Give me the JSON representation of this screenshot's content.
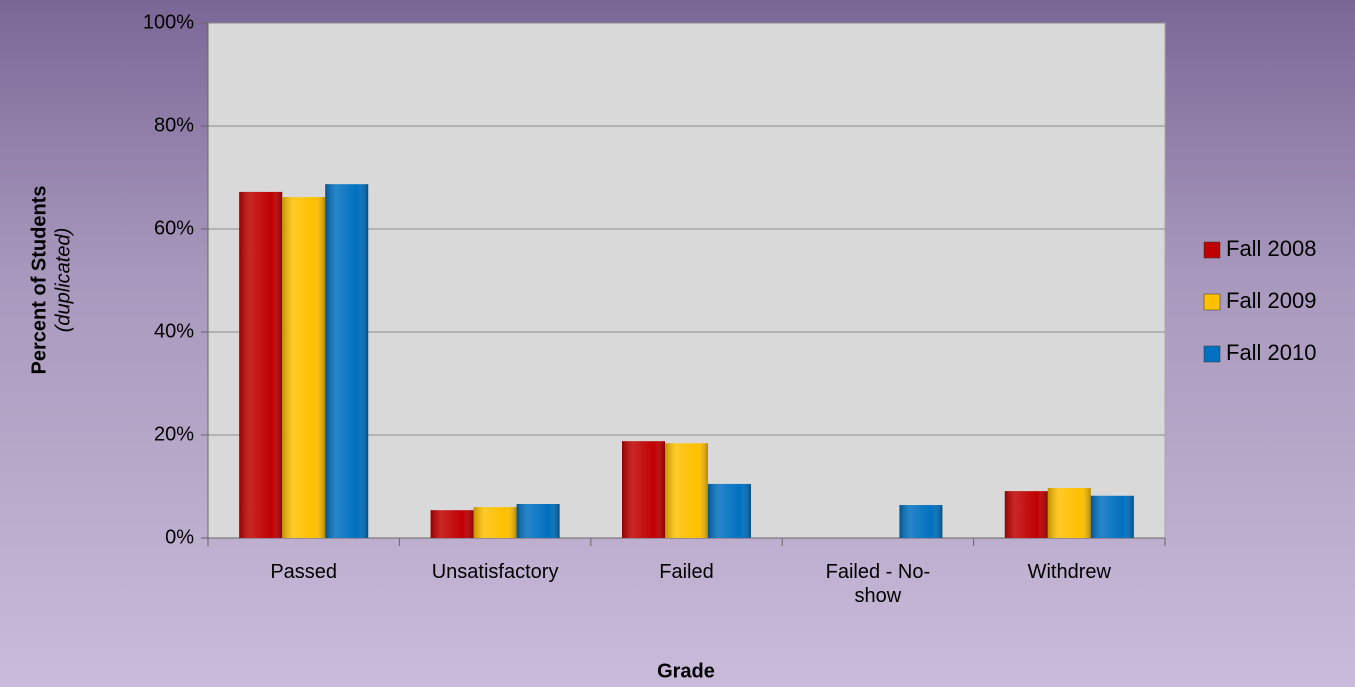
{
  "chart_data": {
    "type": "bar",
    "categories": [
      "Passed",
      "Unsatisfactory",
      "Failed",
      "Failed - No-show",
      "Withdrew"
    ],
    "series": [
      {
        "name": "Fall 2008",
        "color": "#c00000",
        "values": [
          67.2,
          5.4,
          18.8,
          0,
          9.1
        ]
      },
      {
        "name": "Fall 2009",
        "color": "#ffc000",
        "values": [
          66.2,
          6.0,
          18.4,
          0,
          9.7
        ]
      },
      {
        "name": "Fall 2010",
        "color": "#0070c0",
        "values": [
          68.7,
          6.6,
          10.5,
          6.4,
          8.2
        ]
      }
    ],
    "ylim": [
      0,
      100
    ],
    "yticks": [
      {
        "value": 0,
        "label": "0%"
      },
      {
        "value": 20,
        "label": "20%"
      },
      {
        "value": 40,
        "label": "40%"
      },
      {
        "value": 60,
        "label": "60%"
      },
      {
        "value": 80,
        "label": "80%"
      },
      {
        "value": 100,
        "label": "100%"
      }
    ],
    "grid": true,
    "xlabel": "Grade",
    "ylabel": "Percent  of Students",
    "ylabel_note": "(duplicated)",
    "legend": "right"
  }
}
